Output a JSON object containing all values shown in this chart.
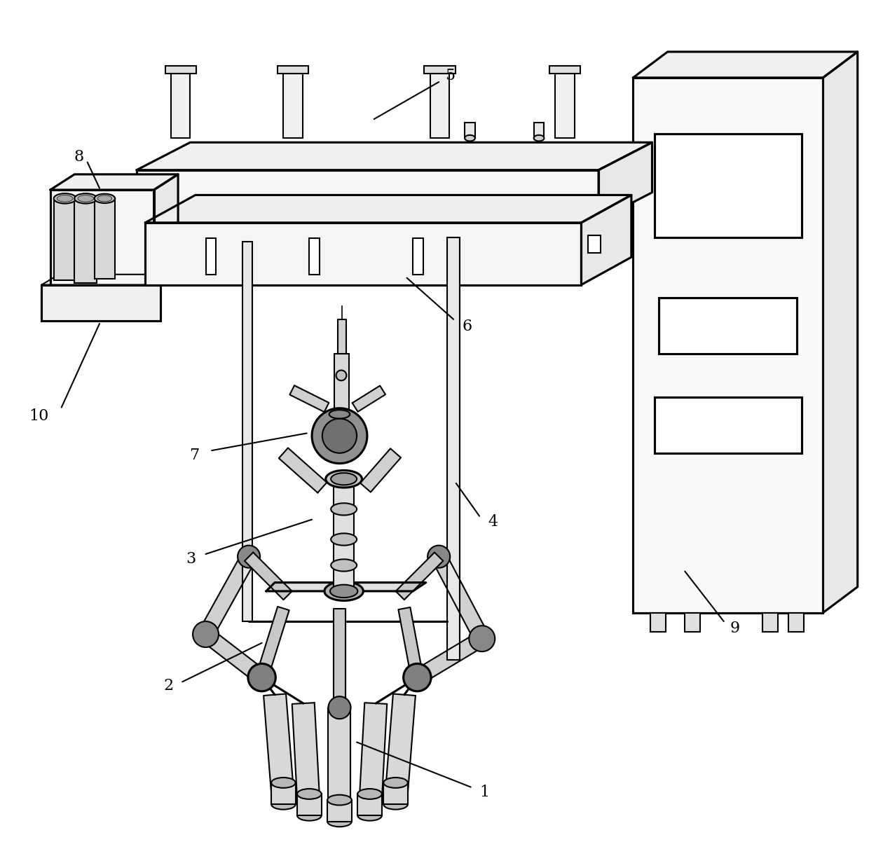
{
  "background_color": "#ffffff",
  "line_color": "#000000",
  "lw": 1.5,
  "label_fontsize": 16,
  "figsize": [
    12.4,
    12.32
  ]
}
